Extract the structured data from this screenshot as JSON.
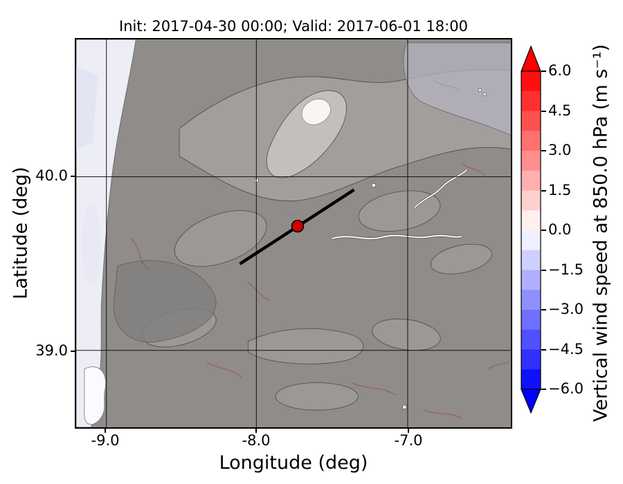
{
  "figure": {
    "title": "Init: 2017-04-30 00:00; Valid: 2017-06-01 18:00",
    "xlabel": "Longitude (deg)",
    "ylabel": "Latitude (deg)"
  },
  "axes": {
    "x_ticks": [
      "-9.0",
      "-8.0",
      "-7.0"
    ],
    "y_ticks": [
      "40.0",
      "39.0"
    ]
  },
  "colorbar": {
    "label": "Vertical wind speed at 850.0 hPa (m s⁻¹)",
    "ticks": [
      "6.0",
      "4.5",
      "3.0",
      "1.5",
      "0.0",
      "−1.5",
      "−3.0",
      "−4.5",
      "−6.0"
    ],
    "segment_colors": [
      "#ff1010",
      "#ff3030",
      "#ff5050",
      "#ff7070",
      "#ff8f8f",
      "#ffafaf",
      "#ffcfcf",
      "#ffefef",
      "#efefff",
      "#cfcfff",
      "#afafff",
      "#8f8fff",
      "#7070ff",
      "#5050ff",
      "#3030ff",
      "#1010ff"
    ],
    "arrow_top_color": "#ff0000",
    "arrow_bottom_color": "#0000ff"
  },
  "map": {
    "marker_color": "#d40000",
    "terrain_base": "#8f8c8a",
    "ocean_tint": "#ededf5"
  },
  "chart_data": {
    "type": "heatmap",
    "title": "Init: 2017-04-30 00:00; Valid: 2017-06-01 18:00",
    "xlabel": "Longitude (deg)",
    "ylabel": "Latitude (deg)",
    "xlim": [
      -9.25,
      -6.35
    ],
    "ylim": [
      38.55,
      40.8
    ],
    "x_ticks": [
      -9.0,
      -8.0,
      -7.0
    ],
    "y_ticks": [
      39.0,
      40.0
    ],
    "grid": true,
    "colormap": "blue-white-red",
    "value_range": [
      -6.0,
      6.0
    ],
    "contour_step": 0.75,
    "extend": "both",
    "colorbar_ticks": [
      6.0,
      4.5,
      3.0,
      1.5,
      0.0,
      -1.5,
      -3.0,
      -4.5,
      -6.0
    ],
    "colorbar_label": "Vertical wind speed at 850.0 hPa (m s⁻¹)",
    "description": "Filled-contour map of model vertical wind speed at 850 hPa over central Portugal/western Spain. Values are mostly near 0 m/s (transparent/white) over gray terrain shading; light blue-white tint offshore along the Atlantic coast at the west edge; a bright white high-terrain patch near lon -7.05, lat 40.35; scattered weak red/blue streaks over mountains.",
    "overlays": {
      "marker": {
        "lon": -7.72,
        "lat": 39.71
      },
      "cross_section_line": {
        "from": {
          "lon": -8.11,
          "lat": 39.5
        },
        "to": {
          "lon": -7.35,
          "lat": 39.92
        }
      }
    }
  }
}
